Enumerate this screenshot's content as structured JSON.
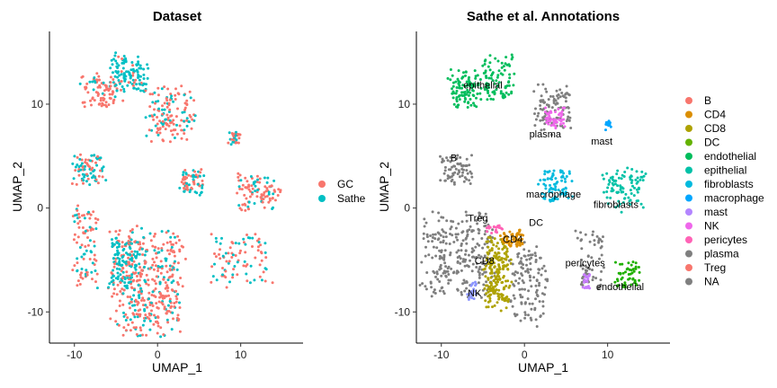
{
  "chart_data": [
    {
      "type": "scatter",
      "title": "Dataset",
      "xlabel": "UMAP_1",
      "ylabel": "UMAP_2",
      "xlim": [
        -13,
        17.5
      ],
      "ylim": [
        -13,
        17
      ],
      "xticks": [
        -10,
        0,
        10
      ],
      "yticks": [
        -10,
        0,
        10
      ],
      "grid": false,
      "legend_position": "right",
      "series": [
        {
          "name": "GC",
          "color": "#F8766D"
        },
        {
          "name": "Sathe",
          "color": "#00BFC4"
        }
      ],
      "clusters": [
        {
          "x": [
            -6,
            3.5
          ],
          "y": [
            -13,
            -1.5
          ],
          "n": 420,
          "mix": [
            0.72,
            0.28
          ]
        },
        {
          "x": [
            -6,
            -2
          ],
          "y": [
            -8,
            -2
          ],
          "n": 110,
          "mix": [
            0.3,
            0.7
          ]
        },
        {
          "x": [
            -10.5,
            -7
          ],
          "y": [
            -8,
            1
          ],
          "n": 90,
          "mix": [
            0.75,
            0.25
          ]
        },
        {
          "x": [
            -10.5,
            -6
          ],
          "y": [
            2,
            5.5
          ],
          "n": 80,
          "mix": [
            0.6,
            0.4
          ]
        },
        {
          "x": [
            -9.5,
            -4
          ],
          "y": [
            9.5,
            13
          ],
          "n": 90,
          "mix": [
            0.8,
            0.2
          ]
        },
        {
          "x": [
            -6,
            -1
          ],
          "y": [
            11,
            15
          ],
          "n": 120,
          "mix": [
            0.1,
            0.9
          ]
        },
        {
          "x": [
            -2,
            5
          ],
          "y": [
            6,
            12
          ],
          "n": 140,
          "mix": [
            0.7,
            0.3
          ]
        },
        {
          "x": [
            2.5,
            6
          ],
          "y": [
            1,
            4
          ],
          "n": 70,
          "mix": [
            0.55,
            0.45
          ]
        },
        {
          "x": [
            9,
            15
          ],
          "y": [
            -0.5,
            3.5
          ],
          "n": 100,
          "mix": [
            0.6,
            0.4
          ]
        },
        {
          "x": [
            6,
            14
          ],
          "y": [
            -8,
            -2
          ],
          "n": 90,
          "mix": [
            0.7,
            0.3
          ]
        },
        {
          "x": [
            8.5,
            10
          ],
          "y": [
            6,
            7.5
          ],
          "n": 30,
          "mix": [
            0.5,
            0.5
          ]
        }
      ]
    },
    {
      "type": "scatter",
      "title": "Sathe et al. Annotations",
      "xlabel": "UMAP_1",
      "ylabel": "UMAP_2",
      "xlim": [
        -13,
        17.5
      ],
      "ylim": [
        -13,
        17
      ],
      "xticks": [
        -10,
        0,
        10
      ],
      "yticks": [
        -10,
        0,
        10
      ],
      "grid": false,
      "legend_position": "right",
      "series": [
        {
          "name": "B",
          "color": "#F8766D"
        },
        {
          "name": "CD4",
          "color": "#DB8E00"
        },
        {
          "name": "CD8",
          "color": "#AEA200"
        },
        {
          "name": "DC",
          "color": "#64B200"
        },
        {
          "name": "endothelial",
          "color": "#00BD5C"
        },
        {
          "name": "epithelial",
          "color": "#00C1A7"
        },
        {
          "name": "fibroblasts",
          "color": "#00BADE"
        },
        {
          "name": "macrophage",
          "color": "#00A6FF"
        },
        {
          "name": "mast",
          "color": "#B385FF"
        },
        {
          "name": "NK",
          "color": "#EF67EB"
        },
        {
          "name": "pericytes",
          "color": "#FF63B6"
        },
        {
          "name": "plasma",
          "color": "#7F7F7F"
        },
        {
          "name": "Treg",
          "color": "#F8766D"
        },
        {
          "name": "NA",
          "color": "#7F7F7F"
        }
      ],
      "clusters": [
        {
          "x": [
            -13,
            -3
          ],
          "y": [
            -9,
            0
          ],
          "n": 260,
          "color": "#7F7F7F"
        },
        {
          "x": [
            -5,
            -1.5
          ],
          "y": [
            -10,
            -2.5
          ],
          "n": 200,
          "color": "#AEA200"
        },
        {
          "x": [
            -3,
            0
          ],
          "y": [
            -4,
            -2
          ],
          "n": 60,
          "color": "#DB8E00"
        },
        {
          "x": [
            -5,
            -2.5
          ],
          "y": [
            -2.5,
            -1.5
          ],
          "n": 20,
          "color": "#FF63B6"
        },
        {
          "x": [
            -7,
            -5.5
          ],
          "y": [
            -9,
            -7
          ],
          "n": 20,
          "color": "#8C96FF"
        },
        {
          "x": [
            -2,
            3
          ],
          "y": [
            -12,
            -3
          ],
          "n": 120,
          "color": "#7F7F7F"
        },
        {
          "x": [
            -10.5,
            -6
          ],
          "y": [
            2,
            5.5
          ],
          "n": 70,
          "color": "#7F7F7F"
        },
        {
          "x": [
            -9.5,
            -5
          ],
          "y": [
            9.5,
            13.5
          ],
          "n": 100,
          "color": "#00BD5C"
        },
        {
          "x": [
            -5.5,
            -1
          ],
          "y": [
            10,
            15
          ],
          "n": 90,
          "color": "#00BD5C"
        },
        {
          "x": [
            1,
            6
          ],
          "y": [
            7,
            12
          ],
          "n": 100,
          "color": "#7F7F7F"
        },
        {
          "x": [
            2,
            5
          ],
          "y": [
            7.5,
            10
          ],
          "n": 50,
          "color": "#EF67EB"
        },
        {
          "x": [
            1.5,
            6
          ],
          "y": [
            0.5,
            4
          ],
          "n": 80,
          "color": "#00BADE"
        },
        {
          "x": [
            9,
            15
          ],
          "y": [
            -0.5,
            4
          ],
          "n": 90,
          "color": "#00C1A7"
        },
        {
          "x": [
            6,
            10
          ],
          "y": [
            -8,
            -2
          ],
          "n": 60,
          "color": "#7F7F7F"
        },
        {
          "x": [
            10.5,
            14
          ],
          "y": [
            -8,
            -5
          ],
          "n": 50,
          "color": "#1FB000"
        },
        {
          "x": [
            7,
            8
          ],
          "y": [
            -8,
            -6
          ],
          "n": 20,
          "color": "#C77CFF"
        },
        {
          "x": [
            9.5,
            10.5
          ],
          "y": [
            7.5,
            8.5
          ],
          "n": 12,
          "color": "#00A6FF"
        }
      ],
      "labels": [
        {
          "text": "epithelial",
          "x": -5.0,
          "y": 11.5
        },
        {
          "text": "plasma",
          "x": 2.5,
          "y": 6.8
        },
        {
          "text": "mast",
          "x": 9.3,
          "y": 6.1
        },
        {
          "text": "B",
          "x": -8.5,
          "y": 4.5
        },
        {
          "text": "macrophage",
          "x": 3.5,
          "y": 1.0
        },
        {
          "text": "fibroblasts",
          "x": 11.0,
          "y": 0.0
        },
        {
          "text": "Treg",
          "x": -5.6,
          "y": -1.3
        },
        {
          "text": "DC",
          "x": 1.4,
          "y": -1.7
        },
        {
          "text": "CD4",
          "x": -1.4,
          "y": -3.3
        },
        {
          "text": "CD8",
          "x": -4.8,
          "y": -5.4
        },
        {
          "text": "pericytes",
          "x": 7.3,
          "y": -5.6
        },
        {
          "text": "endothelial",
          "x": 11.5,
          "y": -7.9
        },
        {
          "text": "NK",
          "x": -6.0,
          "y": -8.5
        }
      ]
    }
  ]
}
